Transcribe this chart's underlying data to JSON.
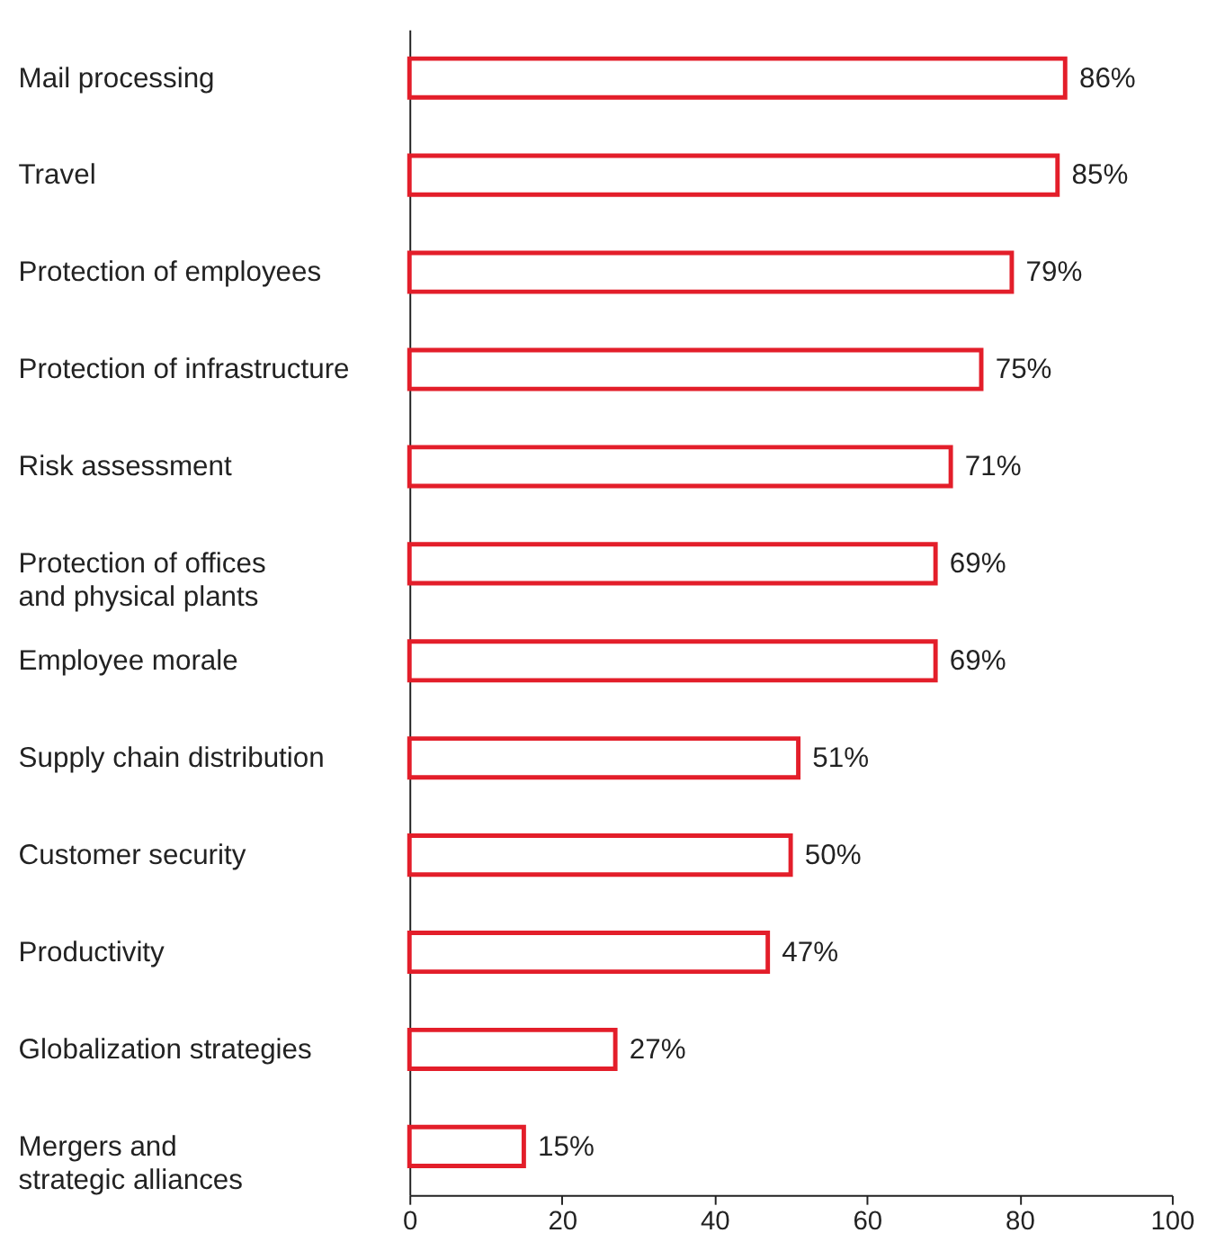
{
  "chart_data": {
    "type": "bar",
    "orientation": "horizontal",
    "categories": [
      "Mail processing",
      "Travel",
      "Protection of employees",
      "Protection of infrastructure",
      "Risk assessment",
      "Protection of offices\nand physical plants",
      "Employee morale",
      "Supply chain distribution",
      "Customer security",
      "Productivity",
      "Globalization strategies",
      "Mergers and\nstrategic alliances"
    ],
    "values": [
      86,
      85,
      79,
      75,
      71,
      69,
      69,
      51,
      50,
      47,
      27,
      15
    ],
    "value_labels": [
      "86%",
      "85%",
      "79%",
      "75%",
      "71%",
      "69%",
      "69%",
      "51%",
      "50%",
      "47%",
      "27%",
      "15%"
    ],
    "color": "#e31e2a",
    "xlim": [
      0,
      100
    ],
    "xticks": [
      0,
      20,
      40,
      60,
      80,
      100
    ],
    "grid": false
  }
}
